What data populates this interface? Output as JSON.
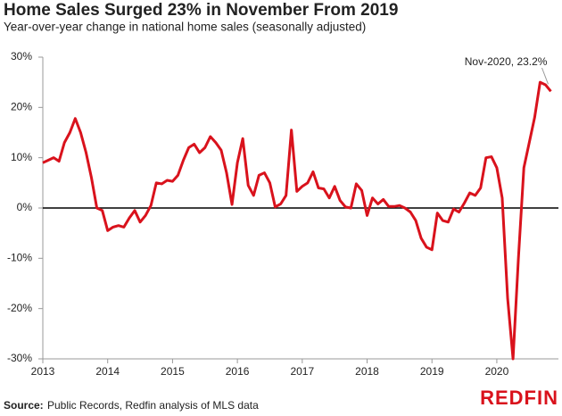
{
  "chart_data": {
    "type": "line",
    "title": "Home Sales Surged 23% in November From 2019",
    "subtitle": "Year-over-year change in national home sales (seasonally adjusted)",
    "annotation": "Nov-2020, 23.2%",
    "source_label": "Source:",
    "source": "Public Records, Redfin analysis of MLS data",
    "logo": "REDFIN",
    "x": [
      2013,
      2013.083,
      2013.167,
      2013.25,
      2013.333,
      2013.417,
      2013.5,
      2013.583,
      2013.667,
      2013.75,
      2013.833,
      2013.917,
      2014,
      2014.083,
      2014.167,
      2014.25,
      2014.333,
      2014.417,
      2014.5,
      2014.583,
      2014.667,
      2014.75,
      2014.833,
      2014.917,
      2015,
      2015.083,
      2015.167,
      2015.25,
      2015.333,
      2015.417,
      2015.5,
      2015.583,
      2015.667,
      2015.75,
      2015.833,
      2015.917,
      2016,
      2016.083,
      2016.167,
      2016.25,
      2016.333,
      2016.417,
      2016.5,
      2016.583,
      2016.667,
      2016.75,
      2016.833,
      2016.917,
      2017,
      2017.083,
      2017.167,
      2017.25,
      2017.333,
      2017.417,
      2017.5,
      2017.583,
      2017.667,
      2017.75,
      2017.833,
      2017.917,
      2018,
      2018.083,
      2018.167,
      2018.25,
      2018.333,
      2018.417,
      2018.5,
      2018.583,
      2018.667,
      2018.75,
      2018.833,
      2018.917,
      2019,
      2019.083,
      2019.167,
      2019.25,
      2019.333,
      2019.417,
      2019.5,
      2019.583,
      2019.667,
      2019.75,
      2019.833,
      2019.917,
      2020,
      2020.083,
      2020.167,
      2020.25,
      2020.333,
      2020.417,
      2020.5,
      2020.583,
      2020.667,
      2020.75,
      2020.833
    ],
    "series": [
      {
        "name": "Home sales YoY",
        "color": "#d9121c",
        "values": [
          9,
          9.5,
          10,
          9.3,
          13,
          15,
          17.8,
          15,
          11,
          6,
          0,
          -0.5,
          -4.5,
          -3.8,
          -3.5,
          -3.8,
          -2,
          -0.5,
          -2.8,
          -1.5,
          0.5,
          5,
          4.8,
          5.5,
          5.3,
          6.5,
          9.5,
          12,
          12.7,
          11,
          12,
          14.2,
          13,
          11.5,
          7,
          0.7,
          9,
          13.8,
          4.5,
          2.5,
          6.5,
          7,
          5,
          0.2,
          0.8,
          2.5,
          15.5,
          3.3,
          4.3,
          5,
          7.2,
          4,
          3.8,
          2,
          4.3,
          1.5,
          0.2,
          0,
          4.8,
          3.5,
          -1.5,
          2,
          0.8,
          1.7,
          0.3,
          0.3,
          0.5,
          0,
          -0.8,
          -2.5,
          -6,
          -7.8,
          -8.3,
          -1,
          -2.5,
          -2.8,
          -0.2,
          -0.8,
          1,
          3,
          2.5,
          4,
          10,
          10.2,
          8,
          2,
          -18,
          -30,
          -10,
          8,
          13,
          18,
          25,
          24.5,
          23.2
        ]
      }
    ],
    "xlim": [
      2013,
      2020.95
    ],
    "xticks": [
      2013,
      2014,
      2015,
      2016,
      2017,
      2018,
      2019,
      2020
    ],
    "ylim": [
      -30,
      30
    ],
    "yticks": [
      {
        "value": 30,
        "label": "30%"
      },
      {
        "value": 20,
        "label": "20%"
      },
      {
        "value": 10,
        "label": "10%"
      },
      {
        "value": 0,
        "label": "0%"
      },
      {
        "value": -10,
        "label": "-10%"
      },
      {
        "value": -20,
        "label": "-20%"
      },
      {
        "value": -30,
        "label": "-30%"
      }
    ]
  }
}
